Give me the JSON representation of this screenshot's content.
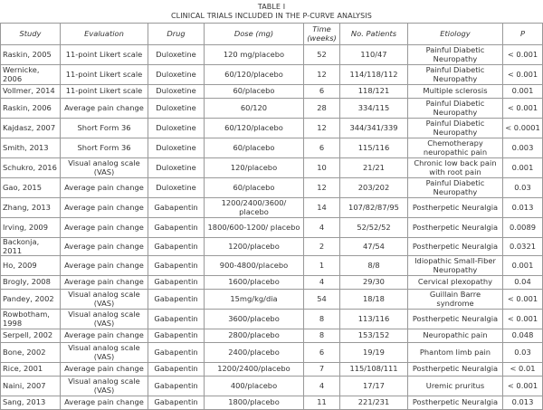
{
  "caption": {
    "label": "TABLE I",
    "title": "CLINICAL TRIALS INCLUDED IN THE P-CURVE ANALYSIS"
  },
  "columns": [
    "Study",
    "Evaluation",
    "Drug",
    "Dose (mg)",
    "Time (weeks)",
    "No. Patients",
    "Etiology",
    "P"
  ],
  "rows": [
    [
      "Raskin, 2005",
      "11-point Likert scale",
      "Duloxetine",
      "120 mg/placebo",
      "52",
      "110/47",
      "Painful Diabetic Neuropathy",
      "< 0.001"
    ],
    [
      "Wernicke, 2006",
      "11-point Likert scale",
      "Duloxetine",
      "60/120/placebo",
      "12",
      "114/118/112",
      "Painful Diabetic Neuropathy",
      "< 0.001"
    ],
    [
      "Vollmer, 2014",
      "11-point Likert scale",
      "Duloxetine",
      "60/placebo",
      "6",
      "118/121",
      "Multiple sclerosis",
      "0.001"
    ],
    [
      "Raskin, 2006",
      "Average pain change",
      "Duloxetine",
      "60/120",
      "28",
      "334/115",
      "Painful Diabetic Neuropathy",
      "< 0.001"
    ],
    [
      "Kajdasz, 2007",
      "Short Form 36",
      "Duloxetine",
      "60/120/placebo",
      "12",
      "344/341/339",
      "Painful Diabetic Neuropathy",
      "< 0.0001"
    ],
    [
      "Smith, 2013",
      "Short Form 36",
      "Duloxetine",
      "60/placebo",
      "6",
      "115/116",
      "Chemotherapy neuropathic pain",
      "0.003"
    ],
    [
      "Schukro, 2016",
      "Visual analog scale (VAS)",
      "Duloxetine",
      "120/placebo",
      "10",
      "21/21",
      "Chronic low back pain with root pain",
      "0.001"
    ],
    [
      "Gao, 2015",
      "Average pain change",
      "Duloxetine",
      "60/placebo",
      "12",
      "203/202",
      "Painful Diabetic Neuropathy",
      "0.03"
    ],
    [
      "Zhang, 2013",
      "Average pain change",
      "Gabapentin",
      "1200/2400/3600/ placebo",
      "14",
      "107/82/87/95",
      "Postherpetic Neuralgia",
      "0.013"
    ],
    [
      "Irving, 2009",
      "Average pain change",
      "Gabapentin",
      "1800/600-1200/ placebo",
      "4",
      "52/52/52",
      "Postherpetic Neuralgia",
      "0.0089"
    ],
    [
      "Backonja, 2011",
      "Average pain change",
      "Gabapentin",
      "1200/placebo",
      "2",
      "47/54",
      "Postherpetic Neuralgia",
      "0.0321"
    ],
    [
      "Ho, 2009",
      "Average pain change",
      "Gabapentin",
      "900-4800/placebo",
      "1",
      "8/8",
      "Idiopathic Small-Fiber Neuropathy",
      "0.001"
    ],
    [
      "Brogly, 2008",
      "Average pain change",
      "Gabapentin",
      "1600/placebo",
      "4",
      "29/30",
      "Cervical plexopathy",
      "0.04"
    ],
    [
      "Pandey, 2002",
      "Visual analog scale (VAS)",
      "Gabapentin",
      "15mg/kg/dia",
      "54",
      "18/18",
      "Guillain Barre syndrome",
      "< 0.001"
    ],
    [
      "Rowbotham, 1998",
      "Visual analog scale (VAS)",
      "Gabapentin",
      "3600/placebo",
      "8",
      "113/116",
      "Postherpetic Neuralgia",
      "< 0.001"
    ],
    [
      "Serpell, 2002",
      "Average pain change",
      "Gabapentin",
      "2800/placebo",
      "8",
      "153/152",
      "Neuropathic pain",
      "0.048"
    ],
    [
      "Bone, 2002",
      "Visual analog scale (VAS)",
      "Gabapentin",
      "2400/placebo",
      "6",
      "19/19",
      "Phantom limb pain",
      "0.03"
    ],
    [
      "Rice, 2001",
      "Average pain change",
      "Gabapentin",
      "1200/2400/placebo",
      "7",
      "115/108/111",
      "Postherpetic Neuralgia",
      "< 0.01"
    ],
    [
      "Naini, 2007",
      "Visual analog scale (VAS)",
      "Gabapentin",
      "400/placebo",
      "4",
      "17/17",
      "Uremic pruritus",
      "< 0.001"
    ],
    [
      "Sang, 2013",
      "Average pain change",
      "Gabapentin",
      "1800/placebo",
      "11",
      "221/231",
      "Postherpetic Neuralgia",
      "0.013"
    ]
  ]
}
